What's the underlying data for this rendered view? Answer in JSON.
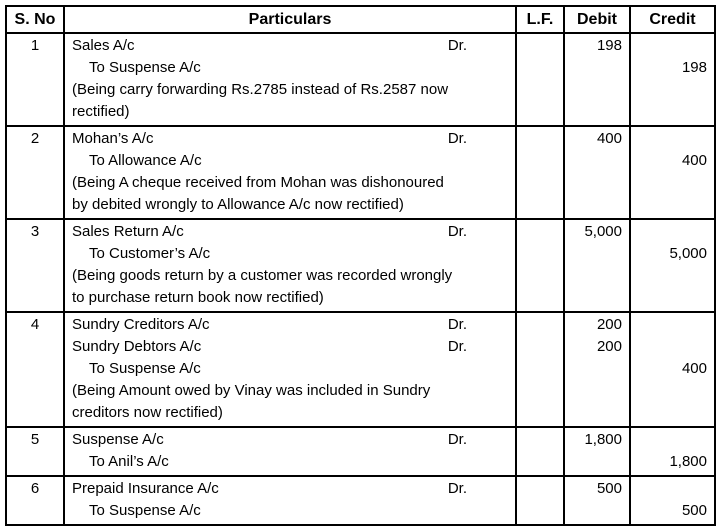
{
  "table": {
    "headers": [
      "S. No",
      "Particulars",
      "L.F.",
      "Debit",
      "Credit"
    ],
    "entries": [
      {
        "sno": "1",
        "lines": [
          {
            "text": "Sales A/c",
            "dr": "Dr.",
            "indent": false,
            "debit": "198",
            "credit": ""
          },
          {
            "text": "To Suspense A/c",
            "dr": "",
            "indent": true,
            "debit": "",
            "credit": "198"
          },
          {
            "text": "(Being carry forwarding Rs.2785 instead of Rs.2587 now",
            "dr": "",
            "indent": false,
            "debit": "",
            "credit": ""
          },
          {
            "text": "rectified)",
            "dr": "",
            "indent": false,
            "debit": "",
            "credit": ""
          }
        ]
      },
      {
        "sno": "2",
        "lines": [
          {
            "text": "Mohan’s A/c",
            "dr": "Dr.",
            "indent": false,
            "debit": "400",
            "credit": ""
          },
          {
            "text": "To Allowance A/c",
            "dr": "",
            "indent": true,
            "debit": "",
            "credit": "400"
          },
          {
            "text": "(Being A cheque received from Mohan was dishonoured",
            "dr": "",
            "indent": false,
            "debit": "",
            "credit": ""
          },
          {
            "text": "by debited wrongly to Allowance A/c now rectified)",
            "dr": "",
            "indent": false,
            "debit": "",
            "credit": ""
          }
        ]
      },
      {
        "sno": "3",
        "lines": [
          {
            "text": "Sales Return A/c",
            "dr": "Dr.",
            "indent": false,
            "debit": "5,000",
            "credit": ""
          },
          {
            "text": "To Customer’s A/c",
            "dr": "",
            "indent": true,
            "debit": "",
            "credit": "5,000"
          },
          {
            "text": "(Being goods return by a customer was recorded wrongly",
            "dr": "",
            "indent": false,
            "debit": "",
            "credit": ""
          },
          {
            "text": "to purchase return book now rectified)",
            "dr": "",
            "indent": false,
            "debit": "",
            "credit": ""
          }
        ]
      },
      {
        "sno": "4",
        "lines": [
          {
            "text": "Sundry Creditors A/c",
            "dr": "Dr.",
            "indent": false,
            "debit": "200",
            "credit": ""
          },
          {
            "text": "Sundry Debtors A/c",
            "dr": "Dr.",
            "indent": false,
            "debit": "200",
            "credit": ""
          },
          {
            "text": "To Suspense A/c",
            "dr": "",
            "indent": true,
            "debit": "",
            "credit": "400"
          },
          {
            "text": "(Being Amount owed by Vinay was included in Sundry",
            "dr": "",
            "indent": false,
            "debit": "",
            "credit": ""
          },
          {
            "text": "creditors now rectified)",
            "dr": "",
            "indent": false,
            "debit": "",
            "credit": ""
          }
        ]
      },
      {
        "sno": "5",
        "lines": [
          {
            "text": "Suspense A/c",
            "dr": "Dr.",
            "indent": false,
            "debit": "1,800",
            "credit": ""
          },
          {
            "text": "To Anil’s A/c",
            "dr": "",
            "indent": true,
            "debit": "",
            "credit": "1,800"
          }
        ]
      },
      {
        "sno": "6",
        "lines": [
          {
            "text": "Prepaid Insurance A/c",
            "dr": "Dr.",
            "indent": false,
            "debit": "500",
            "credit": ""
          },
          {
            "text": "To Suspense A/c",
            "dr": "",
            "indent": true,
            "debit": "",
            "credit": "500"
          }
        ]
      }
    ]
  }
}
